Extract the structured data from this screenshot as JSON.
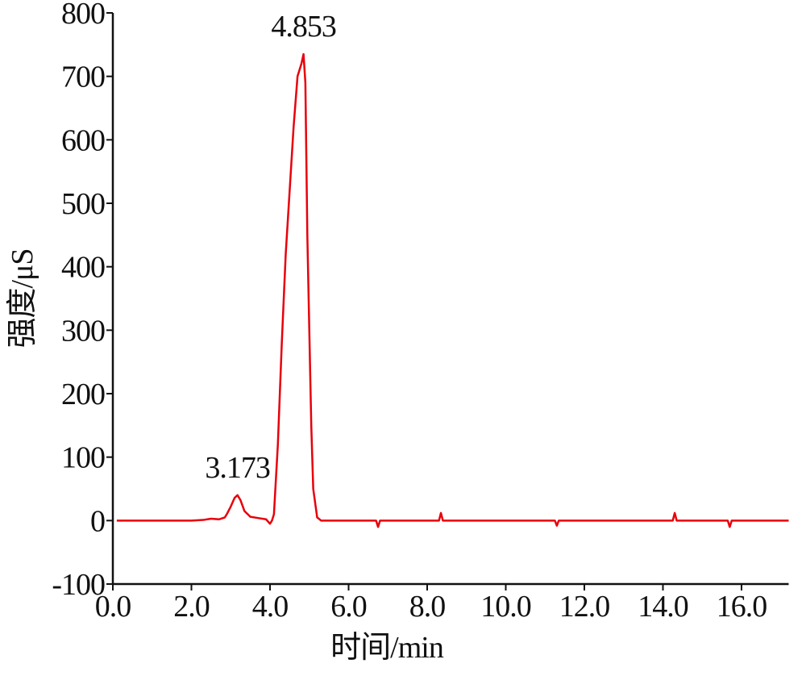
{
  "chart_data": {
    "type": "line",
    "x_label": "时间/min",
    "y_label": "强度/μS",
    "x": [
      0.1,
      1.0,
      2.0,
      2.3,
      2.5,
      2.7,
      2.85,
      2.9,
      3.0,
      3.1,
      3.173,
      3.25,
      3.35,
      3.5,
      3.7,
      3.9,
      4.0,
      4.05,
      4.1,
      4.2,
      4.3,
      4.4,
      4.5,
      4.6,
      4.7,
      4.8,
      4.853,
      4.9,
      4.95,
      5.0,
      5.05,
      5.1,
      5.2,
      5.3,
      6.0,
      6.7,
      6.75,
      6.8,
      7.5,
      8.3,
      8.35,
      8.4,
      9.0,
      10.0,
      10.5,
      11.25,
      11.3,
      11.35,
      12.0,
      14.25,
      14.3,
      14.35,
      15.65,
      15.7,
      15.75,
      17.2
    ],
    "series": [
      {
        "color": "#e8000b",
        "values": [
          0,
          0,
          0,
          1,
          3,
          2,
          5,
          10,
          22,
          36,
          40,
          32,
          15,
          6,
          4,
          2,
          -5,
          0,
          10,
          120,
          280,
          420,
          520,
          620,
          700,
          720,
          735,
          690,
          450,
          300,
          150,
          50,
          5,
          0,
          0,
          0,
          -10,
          0,
          0,
          0,
          12,
          0,
          0,
          0,
          0,
          0,
          -8,
          0,
          0,
          0,
          12,
          0,
          0,
          -10,
          0,
          0
        ]
      }
    ],
    "peak_labels": [
      3.173,
      4.853
    ],
    "xlim": [
      0,
      17.2
    ],
    "xticks": [
      {
        "value": 0,
        "label": "0.0"
      },
      {
        "value": 2,
        "label": "2.0"
      },
      {
        "value": 4,
        "label": "4.0"
      },
      {
        "value": 6,
        "label": "6.0"
      },
      {
        "value": 8,
        "label": "8.0"
      },
      {
        "value": 10,
        "label": "10.0"
      },
      {
        "value": 12,
        "label": "12.0"
      },
      {
        "value": 14,
        "label": "14.0"
      },
      {
        "value": 16,
        "label": "16.0"
      }
    ],
    "ylim": [
      -100,
      800
    ],
    "yticks": [
      -100,
      0,
      100,
      200,
      300,
      400,
      500,
      600,
      700,
      800
    ]
  }
}
